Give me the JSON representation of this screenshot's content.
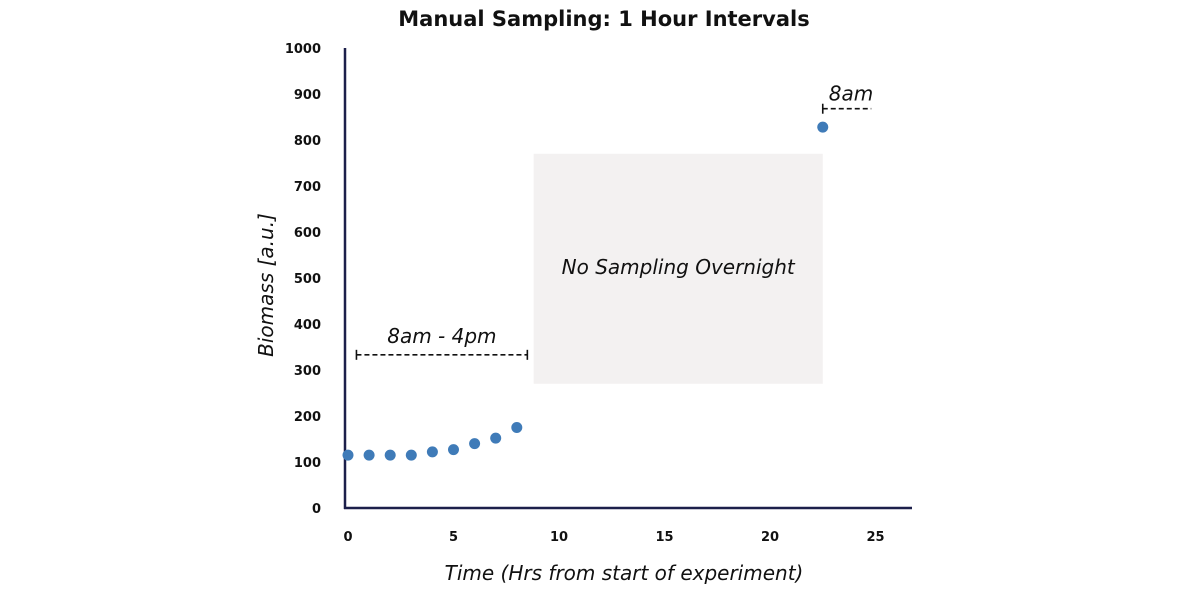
{
  "chart_data": {
    "type": "scatter",
    "title": "Manual Sampling: 1 Hour Intervals",
    "xlabel": "Time (Hrs from start of experiment)",
    "ylabel": "Biomass [a.u.]",
    "xlim": [
      0,
      27
    ],
    "ylim": [
      0,
      1000
    ],
    "xticks": [
      0,
      5,
      10,
      15,
      20,
      25
    ],
    "yticks": [
      0,
      100,
      200,
      300,
      400,
      500,
      600,
      700,
      800,
      900,
      1000
    ],
    "grid": false,
    "series": [
      {
        "color": "#3f7bb8",
        "x": [
          0,
          1,
          2,
          3,
          4,
          5,
          6,
          7,
          8,
          22.5
        ],
        "y": [
          115,
          115,
          115,
          115,
          122,
          127,
          140,
          152,
          175,
          828
        ]
      }
    ],
    "annotations": {
      "day_window": {
        "text": "8am - 4pm",
        "x_start": 0.4,
        "x_end": 8.5,
        "y": 333
      },
      "overnight": {
        "text": "No Sampling Overnight",
        "x_start": 8.8,
        "x_end": 22.5,
        "y_low": 270,
        "y_high": 770,
        "fill": "#f3f1f1"
      },
      "next_morning": {
        "text": "8am",
        "x_start": 22.5,
        "x_end": 24.8,
        "y": 868
      }
    }
  }
}
